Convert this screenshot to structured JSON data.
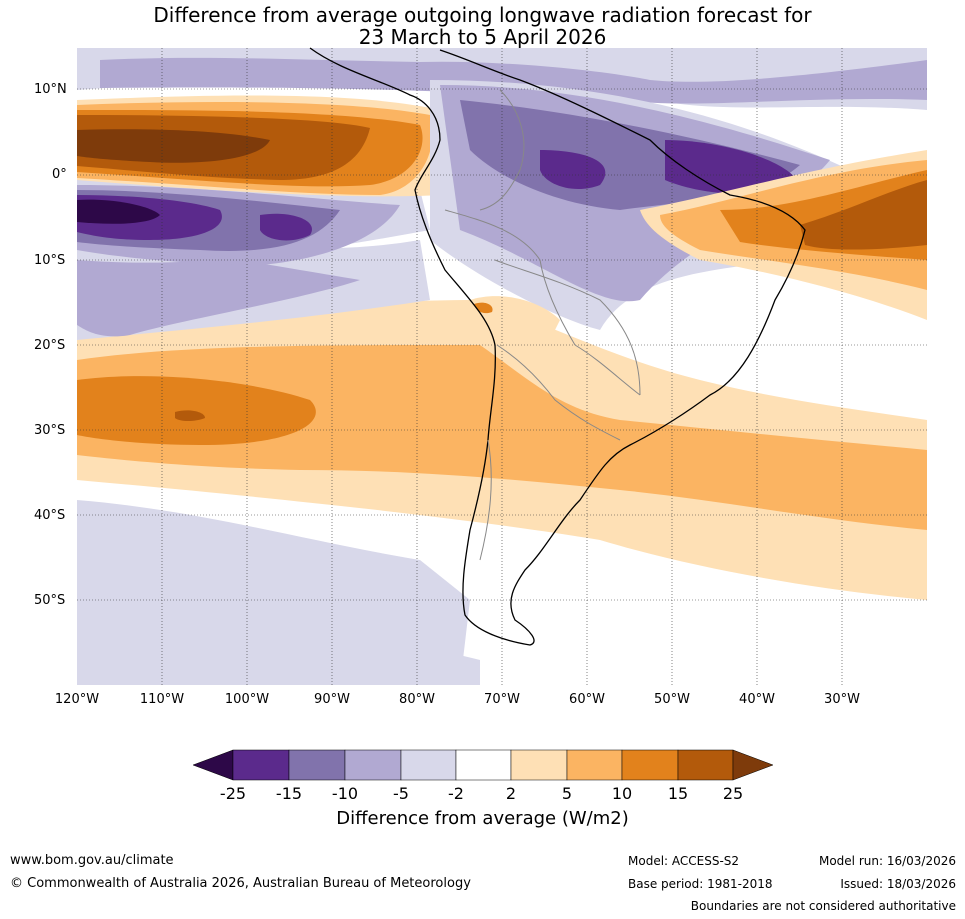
{
  "title": {
    "line1": "Difference from average outgoing longwave radiation forecast for",
    "line2": "23 March to 5 April 2026"
  },
  "map": {
    "region": "South America",
    "lat_labels": [
      "10°N",
      "0°",
      "10°S",
      "20°S",
      "30°S",
      "40°S",
      "50°S"
    ],
    "lon_labels": [
      "120°W",
      "110°W",
      "100°W",
      "90°W",
      "80°W",
      "70°W",
      "60°W",
      "50°W",
      "40°W",
      "30°W"
    ]
  },
  "colorbar": {
    "ticks": [
      "-25",
      "-15",
      "-10",
      "-5",
      "-2",
      "2",
      "5",
      "10",
      "15",
      "25"
    ],
    "label": "Difference from average (W/m2)",
    "colors": {
      "lt_neg25": "#2d0848",
      "neg25_neg15": "#5b2a8c",
      "neg15_neg10": "#8173ac",
      "neg10_neg5": "#b1a9d2",
      "neg5_neg2": "#d8d8ea",
      "neg2_2": "#ffffff",
      "p2_5": "#fee0b5",
      "p5_10": "#fbb462",
      "p10_15": "#e2821c",
      "p15_25": "#b35a0b",
      "gt_25": "#7e3b0b"
    }
  },
  "footer": {
    "website": "www.bom.gov.au/climate",
    "copyright": "© Commonwealth of Australia 2026, Australian Bureau of Meteorology",
    "model": "Model: ACCESS-S2",
    "base_period": "Base period: 1981-2018",
    "model_run": "Model run: 16/03/2026",
    "issued": "Issued: 18/03/2026",
    "disclaimer": "Boundaries are not considered authoritative"
  }
}
